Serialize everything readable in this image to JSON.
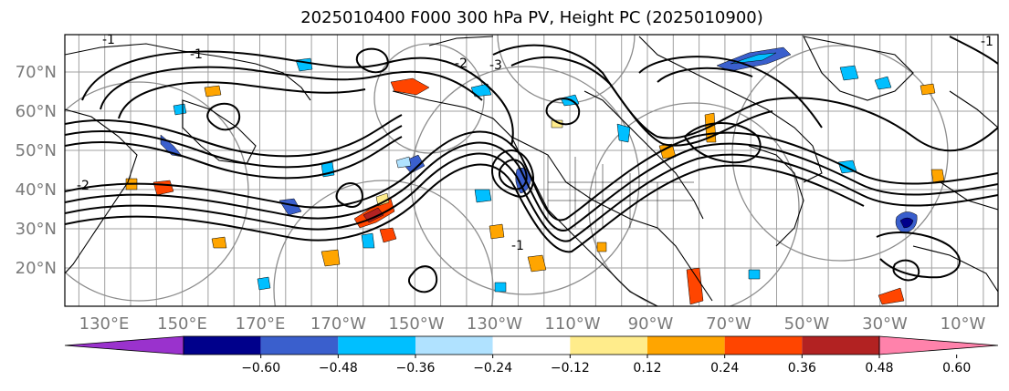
{
  "title": "2025010400 F000 300 hPa PV, Height PC (2025010900)",
  "lat_labels": [
    "70°N",
    "60°N",
    "50°N",
    "40°N",
    "30°N",
    "20°N"
  ],
  "lon_labels": [
    "130°E",
    "150°E",
    "170°E",
    "170°W",
    "150°W",
    "130°W",
    "110°W",
    "90°W",
    "70°W",
    "50°W",
    "30°W",
    "10°W"
  ],
  "colorbar": {
    "ticks": [
      "−0.60",
      "−0.48",
      "−0.36",
      "−0.24",
      "−0.12",
      "0.12",
      "0.24",
      "0.36",
      "0.48",
      "0.60"
    ],
    "colors": [
      "#9a32cd",
      "#00008b",
      "#3a5fcd",
      "#00bfff",
      "#b0e2ff",
      "#ffffff",
      "#ffec8b",
      "#ffa500",
      "#ff4500",
      "#b22222",
      "#ff82ab"
    ]
  },
  "contour_labels": [
    "-1",
    "-1",
    "-2",
    "-3",
    "-2",
    "-1",
    "-1"
  ],
  "colors": {
    "land": "#000000",
    "grid": "#a0a0a0",
    "contour": "#000000",
    "range_ring": "#808080"
  }
}
